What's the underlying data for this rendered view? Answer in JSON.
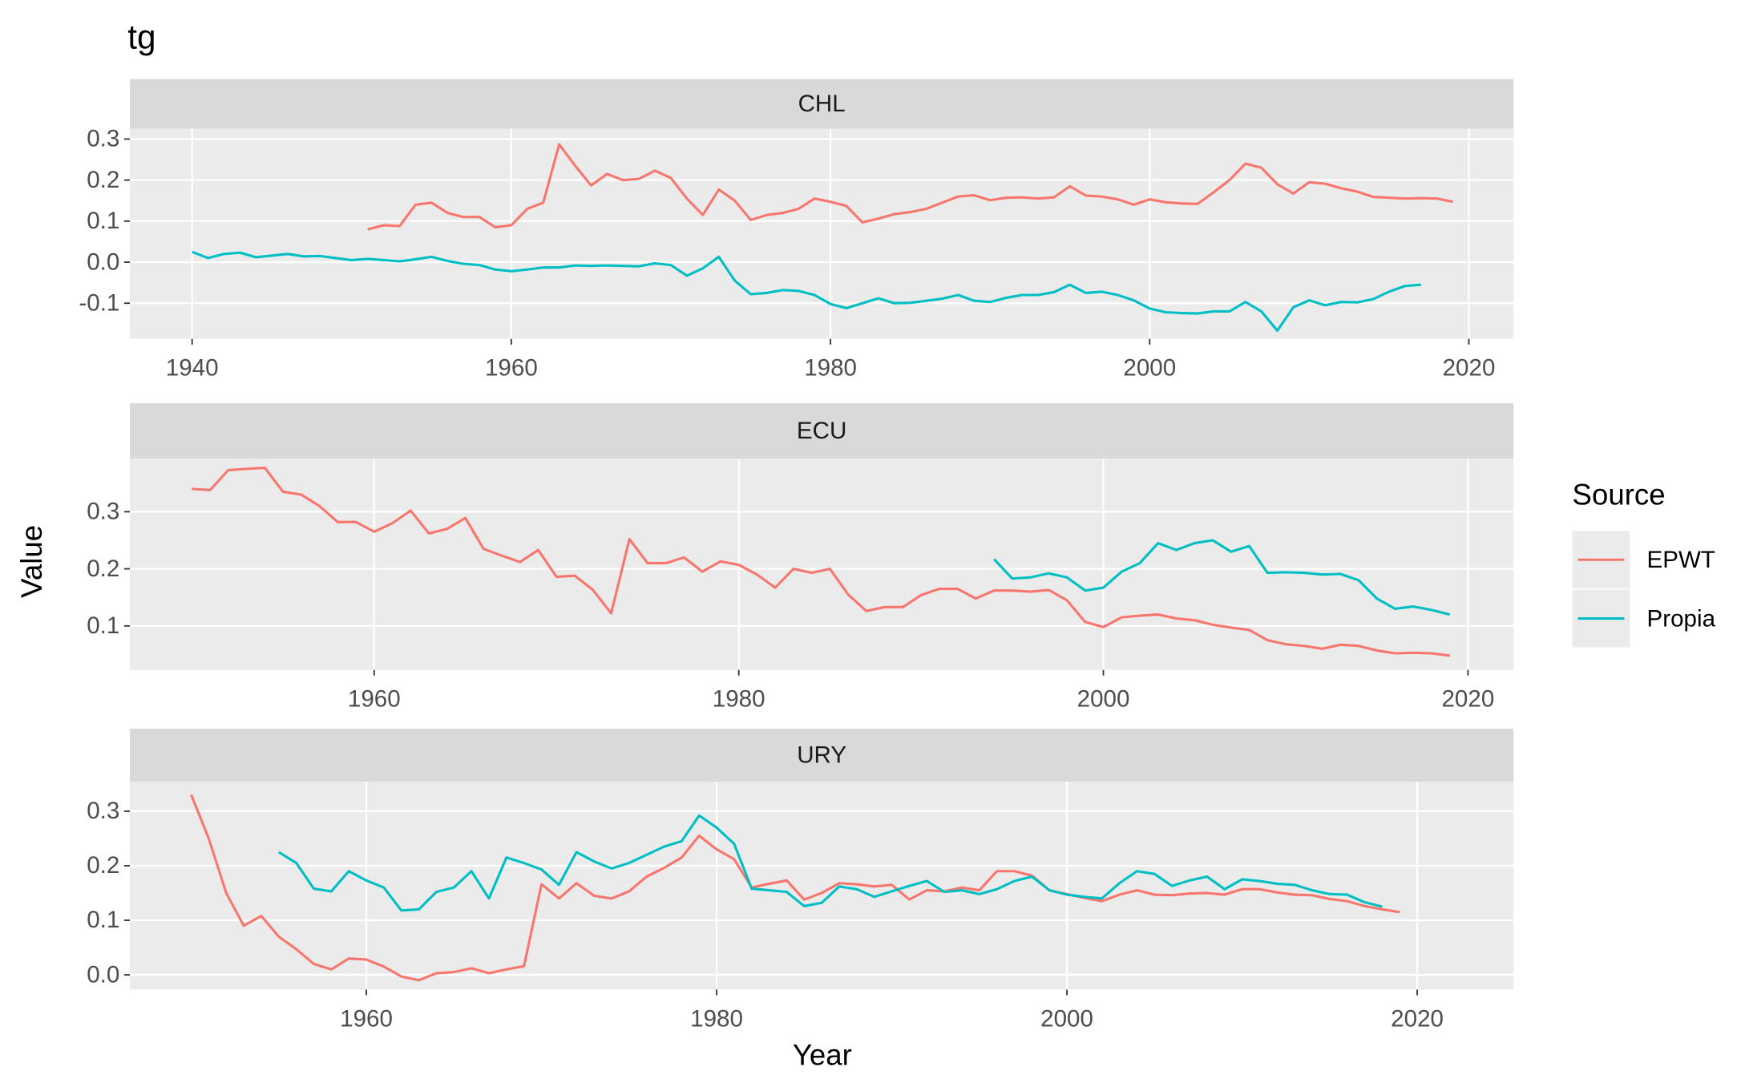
{
  "title": "tg",
  "xlabel": "Year",
  "ylabel": "Value",
  "legend_title": "Source",
  "chart_data": [
    {
      "type": "line",
      "title": "CHL",
      "x": [
        1940,
        1941,
        1942,
        1943,
        1944,
        1945,
        1946,
        1947,
        1948,
        1949,
        1950,
        1951,
        1952,
        1953,
        1954,
        1955,
        1956,
        1957,
        1958,
        1959,
        1960,
        1961,
        1962,
        1963,
        1964,
        1965,
        1966,
        1967,
        1968,
        1969,
        1970,
        1971,
        1972,
        1973,
        1974,
        1975,
        1976,
        1977,
        1978,
        1979,
        1980,
        1981,
        1982,
        1983,
        1984,
        1985,
        1986,
        1987,
        1988,
        1989,
        1990,
        1991,
        1992,
        1993,
        1994,
        1995,
        1996,
        1997,
        1998,
        1999,
        2000,
        2001,
        2002,
        2003,
        2004,
        2005,
        2006,
        2007,
        2008,
        2009,
        2010,
        2011,
        2012,
        2013,
        2014,
        2015,
        2016,
        2017,
        2018,
        2019
      ],
      "xlim": [
        1936.1,
        2022.8
      ],
      "xticks": [
        1940,
        1960,
        1980,
        2000,
        2020
      ],
      "ylim": [
        -0.187,
        0.325
      ],
      "yticks": [
        -0.1,
        {
          "value": 0,
          "label": "0.0"
        },
        0.1,
        0.2,
        0.3
      ],
      "series": [
        {
          "name": "EPWT",
          "color": "#F8766D",
          "values": [
            null,
            null,
            null,
            null,
            null,
            null,
            null,
            null,
            null,
            null,
            null,
            0.08,
            0.09,
            0.088,
            0.14,
            0.145,
            0.12,
            0.11,
            0.11,
            0.085,
            0.09,
            0.13,
            0.145,
            0.287,
            0.235,
            0.187,
            0.215,
            0.2,
            0.203,
            0.223,
            0.205,
            0.155,
            0.115,
            0.177,
            0.15,
            0.103,
            0.115,
            0.12,
            0.13,
            0.155,
            0.147,
            0.137,
            0.097,
            0.106,
            0.117,
            0.122,
            0.13,
            0.145,
            0.16,
            0.163,
            0.151,
            0.157,
            0.158,
            0.155,
            0.158,
            0.185,
            0.162,
            0.16,
            0.153,
            0.14,
            0.153,
            0.146,
            0.143,
            0.142,
            0.17,
            0.2,
            0.24,
            0.23,
            0.19,
            0.167,
            0.195,
            0.191,
            0.18,
            0.172,
            0.159,
            0.157,
            0.155,
            0.156,
            0.155,
            0.147
          ]
        },
        {
          "name": "Propia",
          "color": "#00BFC4",
          "values": [
            0.025,
            0.01,
            0.02,
            0.023,
            0.012,
            0.016,
            0.02,
            0.014,
            0.015,
            0.01,
            0.005,
            0.008,
            0.005,
            0.002,
            0.007,
            0.013,
            0.003,
            -0.004,
            -0.007,
            -0.018,
            -0.022,
            -0.018,
            -0.013,
            -0.013,
            -0.008,
            -0.009,
            -0.008,
            -0.009,
            -0.01,
            -0.003,
            -0.007,
            -0.033,
            -0.015,
            0.013,
            -0.045,
            -0.078,
            -0.075,
            -0.068,
            -0.07,
            -0.08,
            -0.102,
            -0.112,
            -0.1,
            -0.088,
            -0.1,
            -0.099,
            -0.094,
            -0.089,
            -0.08,
            -0.094,
            -0.097,
            -0.087,
            -0.08,
            -0.08,
            -0.073,
            -0.055,
            -0.075,
            -0.072,
            -0.08,
            -0.093,
            -0.113,
            -0.122,
            -0.124,
            -0.125,
            -0.12,
            -0.12,
            -0.097,
            -0.12,
            -0.167,
            -0.11,
            -0.093,
            -0.105,
            -0.097,
            -0.098,
            -0.09,
            -0.072,
            -0.058,
            -0.055,
            null,
            null
          ]
        }
      ]
    },
    {
      "type": "line",
      "title": "ECU",
      "x": [
        1950,
        1951,
        1952,
        1953,
        1954,
        1955,
        1956,
        1957,
        1958,
        1959,
        1960,
        1961,
        1962,
        1963,
        1964,
        1965,
        1966,
        1967,
        1968,
        1969,
        1970,
        1971,
        1972,
        1973,
        1974,
        1975,
        1976,
        1977,
        1978,
        1979,
        1980,
        1981,
        1982,
        1983,
        1984,
        1985,
        1986,
        1987,
        1988,
        1989,
        1990,
        1991,
        1992,
        1993,
        1994,
        1995,
        1996,
        1997,
        1998,
        1999,
        2000,
        2001,
        2002,
        2003,
        2004,
        2005,
        2006,
        2007,
        2008,
        2009,
        2010,
        2011,
        2012,
        2013,
        2014,
        2015,
        2016,
        2017,
        2018,
        2019
      ],
      "xlim": [
        1946.6,
        2022.5
      ],
      "xticks": [
        1960,
        1980,
        2000,
        2020
      ],
      "ylim": [
        0.023,
        0.393
      ],
      "yticks": [
        0.1,
        0.2,
        0.3
      ],
      "series": [
        {
          "name": "EPWT",
          "color": "#F8766D",
          "values": [
            0.34,
            0.338,
            0.373,
            0.375,
            0.377,
            0.335,
            0.33,
            0.31,
            0.282,
            0.282,
            0.265,
            0.28,
            0.302,
            0.262,
            0.27,
            0.289,
            0.235,
            0.223,
            0.212,
            0.233,
            0.186,
            0.188,
            0.163,
            0.122,
            0.252,
            0.21,
            0.21,
            0.22,
            0.195,
            0.213,
            0.207,
            0.19,
            0.167,
            0.2,
            0.193,
            0.2,
            0.155,
            0.126,
            0.133,
            0.133,
            0.154,
            0.165,
            0.165,
            0.148,
            0.162,
            0.162,
            0.16,
            0.163,
            0.145,
            0.107,
            0.098,
            0.115,
            0.118,
            0.12,
            0.113,
            0.11,
            0.102,
            0.097,
            0.093,
            0.075,
            0.068,
            0.065,
            0.06,
            0.067,
            0.065,
            0.057,
            0.052,
            0.053,
            0.052,
            0.048
          ]
        },
        {
          "name": "Propia",
          "color": "#00BFC4",
          "values": [
            null,
            null,
            null,
            null,
            null,
            null,
            null,
            null,
            null,
            null,
            null,
            null,
            null,
            null,
            null,
            null,
            null,
            null,
            null,
            null,
            null,
            null,
            null,
            null,
            null,
            null,
            null,
            null,
            null,
            null,
            null,
            null,
            null,
            null,
            null,
            null,
            null,
            null,
            null,
            null,
            null,
            null,
            null,
            null,
            0.217,
            0.183,
            0.185,
            0.192,
            0.185,
            0.162,
            0.167,
            0.195,
            0.21,
            0.245,
            0.233,
            0.245,
            0.25,
            0.23,
            0.24,
            0.193,
            0.194,
            0.193,
            0.19,
            0.191,
            0.18,
            0.148,
            0.13,
            0.134,
            0.128,
            0.12
          ]
        }
      ]
    },
    {
      "type": "line",
      "title": "URY",
      "x": [
        1950,
        1951,
        1952,
        1953,
        1954,
        1955,
        1956,
        1957,
        1958,
        1959,
        1960,
        1961,
        1962,
        1963,
        1964,
        1965,
        1966,
        1967,
        1968,
        1969,
        1970,
        1971,
        1972,
        1973,
        1974,
        1975,
        1976,
        1977,
        1978,
        1979,
        1980,
        1981,
        1982,
        1983,
        1984,
        1985,
        1986,
        1987,
        1988,
        1989,
        1990,
        1991,
        1992,
        1993,
        1994,
        1995,
        1996,
        1997,
        1998,
        1999,
        2000,
        2001,
        2002,
        2003,
        2004,
        2005,
        2006,
        2007,
        2008,
        2009,
        2010,
        2011,
        2012,
        2013,
        2014,
        2015,
        2016,
        2017,
        2018,
        2019
      ],
      "xlim": [
        1946.5,
        2025.5
      ],
      "xticks": [
        1960,
        1980,
        2000,
        2020
      ],
      "ylim": [
        -0.027,
        0.354
      ],
      "yticks": [
        {
          "value": 0,
          "label": "0.0"
        },
        0.1,
        0.2,
        0.3
      ],
      "series": [
        {
          "name": "EPWT",
          "color": "#F8766D",
          "values": [
            0.33,
            0.25,
            0.15,
            0.09,
            0.108,
            0.07,
            0.047,
            0.02,
            0.01,
            0.03,
            0.028,
            0.015,
            -0.003,
            -0.01,
            0.003,
            0.005,
            0.012,
            0.003,
            0.01,
            0.016,
            0.166,
            0.14,
            0.168,
            0.145,
            0.14,
            0.153,
            0.18,
            0.196,
            0.215,
            0.255,
            0.23,
            0.212,
            0.16,
            0.167,
            0.173,
            0.138,
            0.15,
            0.168,
            0.166,
            0.162,
            0.165,
            0.138,
            0.155,
            0.153,
            0.16,
            0.155,
            0.19,
            0.19,
            0.182,
            0.155,
            0.148,
            0.141,
            0.135,
            0.147,
            0.155,
            0.147,
            0.146,
            0.149,
            0.15,
            0.147,
            0.157,
            0.157,
            0.151,
            0.147,
            0.146,
            0.139,
            0.135,
            0.126,
            0.12,
            0.115
          ]
        },
        {
          "name": "Propia",
          "color": "#00BFC4",
          "values": [
            null,
            null,
            null,
            null,
            null,
            0.225,
            0.205,
            0.158,
            0.153,
            0.19,
            0.173,
            0.16,
            0.118,
            0.12,
            0.152,
            0.16,
            0.19,
            0.14,
            0.215,
            0.205,
            0.193,
            0.165,
            0.225,
            0.208,
            0.195,
            0.205,
            0.22,
            0.235,
            0.245,
            0.292,
            0.27,
            0.24,
            0.158,
            0.155,
            0.152,
            0.126,
            0.132,
            0.162,
            0.157,
            0.143,
            0.153,
            0.163,
            0.172,
            0.152,
            0.155,
            0.148,
            0.157,
            0.172,
            0.18,
            0.155,
            0.147,
            0.143,
            0.14,
            0.168,
            0.19,
            0.185,
            0.163,
            0.173,
            0.18,
            0.157,
            0.175,
            0.172,
            0.167,
            0.165,
            0.155,
            0.148,
            0.147,
            0.133,
            0.125,
            null
          ]
        }
      ]
    }
  ]
}
